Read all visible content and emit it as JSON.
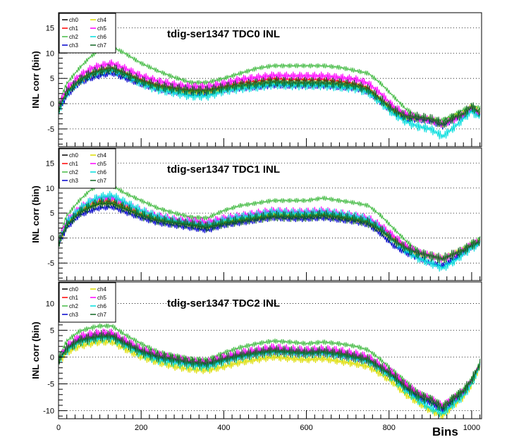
{
  "chart_data": [
    {
      "type": "line",
      "title": "tdig-ser1347 TDC0 INL",
      "ylabel": "INL corr (bin)",
      "xlabel": "",
      "xlim": [
        0,
        1024
      ],
      "ylim": [
        -8.5,
        18
      ],
      "yticks": [
        -5,
        0,
        5,
        10,
        15
      ],
      "grid": "horizontal-dotted",
      "legend": "top-left",
      "x": [
        0,
        20,
        50,
        80,
        100,
        130,
        160,
        200,
        240,
        280,
        320,
        360,
        400,
        440,
        480,
        520,
        560,
        600,
        640,
        680,
        720,
        750,
        780,
        810,
        840,
        870,
        900,
        930,
        960,
        980,
        1000,
        1024
      ],
      "series": [
        {
          "name": "ch0",
          "color": "#000000",
          "values": [
            -1,
            2,
            4.2,
            5.5,
            6,
            6.5,
            5.5,
            4,
            3,
            2.6,
            2.2,
            2.2,
            2.8,
            3.2,
            3.5,
            4,
            3.8,
            3.8,
            3.8,
            3.5,
            3.2,
            2.5,
            0.5,
            -1.5,
            -2.5,
            -2.5,
            -3,
            -4,
            -2.5,
            -2,
            -0.5,
            -2
          ]
        },
        {
          "name": "ch1",
          "color": "#ff0000",
          "values": [
            -1,
            2.5,
            4.8,
            6.2,
            6.8,
            7.2,
            6.2,
            4.8,
            3.8,
            3.2,
            2.8,
            2.8,
            3.5,
            4.2,
            4.5,
            5,
            4.8,
            4.8,
            4.8,
            4.5,
            4,
            3.2,
            1,
            -1,
            -2.5,
            -3,
            -3.2,
            -4,
            -2.8,
            -2,
            -0.8,
            -2.2
          ]
        },
        {
          "name": "ch2",
          "color": "#44bb44",
          "values": [
            0,
            4,
            7,
            9.5,
            10.5,
            11.2,
            10,
            8,
            6.5,
            5.2,
            4.2,
            4.2,
            5,
            6,
            7,
            7.5,
            7.5,
            7.5,
            7.5,
            7.2,
            6.5,
            6,
            4,
            1.5,
            -1,
            -2.5,
            -3,
            -3.2,
            -2,
            -1.2,
            -0.3,
            -1
          ]
        },
        {
          "name": "ch3",
          "color": "#0000cc",
          "values": [
            -1.5,
            1.5,
            4,
            5,
            5.5,
            6,
            5,
            3.8,
            2.8,
            2.2,
            2,
            2,
            2.6,
            3,
            3.2,
            3.6,
            3.5,
            3.5,
            3.5,
            3.2,
            3,
            2.2,
            0.2,
            -1.8,
            -3,
            -3.2,
            -3.5,
            -4.5,
            -3,
            -2.3,
            -1,
            -2.5
          ]
        },
        {
          "name": "ch4",
          "color": "#dddd00",
          "values": [
            -1,
            2.2,
            4.5,
            5.8,
            6.4,
            6.8,
            5.8,
            4.3,
            3.3,
            2.8,
            2.4,
            2.4,
            3,
            3.5,
            3.8,
            4.2,
            4,
            4,
            4,
            3.8,
            3.4,
            2.7,
            0.6,
            -1.3,
            -2.6,
            -2.8,
            -3.1,
            -4.1,
            -2.6,
            -2,
            -0.6,
            -2
          ]
        },
        {
          "name": "ch5",
          "color": "#ff00ff",
          "values": [
            -0.5,
            3,
            5.5,
            7,
            7.5,
            8,
            7,
            5.5,
            4.5,
            3.8,
            3.4,
            3.4,
            4,
            4.8,
            5.2,
            5.6,
            5.5,
            5.5,
            5.5,
            5.2,
            4.8,
            4,
            2,
            -0.5,
            -2,
            -2.8,
            -3.2,
            -4,
            -3,
            -2.2,
            -0.8,
            -2.5
          ]
        },
        {
          "name": "ch6",
          "color": "#00dddd",
          "values": [
            -1.5,
            2,
            4.5,
            5.8,
            6.3,
            6.7,
            5.7,
            4,
            2.8,
            2.2,
            1.5,
            1.5,
            2.5,
            3,
            3.3,
            3.8,
            3.6,
            3.6,
            3.6,
            3.3,
            3,
            2.2,
            0.2,
            -2,
            -3.5,
            -4.5,
            -5,
            -6.5,
            -4.5,
            -3,
            -1.5,
            -3
          ]
        },
        {
          "name": "ch7",
          "color": "#116622",
          "values": [
            -1,
            2.3,
            4.6,
            6,
            6.5,
            7,
            6,
            4.5,
            3.5,
            3,
            2.6,
            2.6,
            3.2,
            3.7,
            4,
            4.4,
            4.2,
            4.2,
            4.2,
            4,
            3.6,
            2.8,
            0.8,
            -1.2,
            -2.5,
            -2.7,
            -3,
            -4,
            -2.6,
            -2,
            -0.6,
            -2.1
          ]
        }
      ]
    },
    {
      "type": "line",
      "title": "tdig-ser1347 TDC1 INL",
      "ylabel": "INL corr (bin)",
      "xlabel": "",
      "xlim": [
        0,
        1024
      ],
      "ylim": [
        -8.5,
        18
      ],
      "yticks": [
        -5,
        0,
        5,
        10,
        15
      ],
      "grid": "horizontal-dotted",
      "legend": "top-left",
      "x": [
        0,
        20,
        50,
        80,
        100,
        130,
        160,
        200,
        240,
        280,
        320,
        360,
        400,
        440,
        480,
        520,
        560,
        600,
        640,
        680,
        720,
        750,
        780,
        810,
        840,
        870,
        900,
        930,
        960,
        980,
        1000,
        1024
      ],
      "series": [
        {
          "name": "ch0",
          "color": "#000000",
          "values": [
            -1,
            2.5,
            5,
            6.2,
            6.8,
            6.8,
            5.8,
            4.5,
            3.5,
            3,
            2.5,
            2,
            2.8,
            3.3,
            3.8,
            4.3,
            4.2,
            4.2,
            4.5,
            4,
            3.5,
            3,
            1.5,
            -0.5,
            -2,
            -3,
            -3.5,
            -4,
            -3,
            -2.5,
            -1.5,
            -0.5
          ]
        },
        {
          "name": "ch1",
          "color": "#ff0000",
          "values": [
            -1,
            3,
            5.5,
            7,
            7.5,
            7.5,
            6.5,
            5,
            4,
            3.5,
            3.2,
            2.8,
            3.5,
            4,
            4.5,
            5,
            4.8,
            4.8,
            5,
            4.6,
            4,
            3.5,
            2,
            0,
            -1.8,
            -3,
            -3.5,
            -4.2,
            -3,
            -2.3,
            -1.2,
            -0.5
          ]
        },
        {
          "name": "ch2",
          "color": "#44bb44",
          "values": [
            0,
            4.5,
            7.5,
            9.8,
            10.5,
            10.5,
            9,
            7.5,
            6,
            5,
            4.2,
            4,
            5.5,
            6.5,
            7,
            7.5,
            7.5,
            7.5,
            8,
            7.5,
            7,
            6.5,
            4.5,
            2,
            -0.5,
            -2.5,
            -3.5,
            -4,
            -3,
            -2,
            -0.8,
            0
          ]
        },
        {
          "name": "ch3",
          "color": "#0000cc",
          "values": [
            -1.5,
            2,
            4.5,
            5.5,
            6,
            6.2,
            5.2,
            4,
            3,
            2.5,
            2,
            1.5,
            2.5,
            3,
            3.5,
            4,
            3.8,
            3.8,
            4,
            3.6,
            3.2,
            2.6,
            0.8,
            -1.5,
            -3,
            -4,
            -5,
            -5.5,
            -4,
            -3,
            -1.8,
            -0.8
          ]
        },
        {
          "name": "ch4",
          "color": "#dddd00",
          "values": [
            -1,
            2.8,
            5.3,
            6.6,
            7.1,
            7.1,
            6.1,
            4.8,
            3.8,
            3.3,
            2.8,
            2.4,
            3.2,
            3.7,
            4.1,
            4.6,
            4.5,
            4.5,
            4.7,
            4.3,
            3.8,
            3.2,
            1.7,
            -0.3,
            -1.9,
            -3,
            -3.5,
            -4.1,
            -3,
            -2.4,
            -1.3,
            -0.5
          ]
        },
        {
          "name": "ch5",
          "color": "#ff00ff",
          "values": [
            -0.5,
            3.5,
            6,
            7.5,
            8,
            8,
            7,
            5.5,
            4.5,
            3.8,
            3.5,
            3.2,
            4,
            4.5,
            5,
            5.5,
            5.3,
            5.3,
            5.5,
            5,
            4.5,
            4,
            2.5,
            0.5,
            -1.5,
            -2.8,
            -3.5,
            -4.2,
            -3.2,
            -2.5,
            -1.3,
            -0.5
          ]
        },
        {
          "name": "ch6",
          "color": "#00dddd",
          "values": [
            -1,
            3.2,
            5.8,
            7.5,
            8.2,
            8.5,
            7.2,
            5.5,
            4.3,
            3.5,
            3,
            2.6,
            3.6,
            4.2,
            4.6,
            5.2,
            5,
            5,
            5.2,
            4.8,
            4.3,
            3.7,
            2,
            -0.5,
            -2.5,
            -4,
            -5,
            -6,
            -4.5,
            -3.2,
            -2,
            -1
          ]
        },
        {
          "name": "ch7",
          "color": "#116622",
          "values": [
            -1,
            2.6,
            5.1,
            6.4,
            7,
            7,
            6,
            4.6,
            3.6,
            3.1,
            2.7,
            2.2,
            3,
            3.5,
            4,
            4.4,
            4.3,
            4.3,
            4.6,
            4.2,
            3.7,
            3.1,
            1.6,
            -0.4,
            -2,
            -3,
            -3.6,
            -4.2,
            -3.1,
            -2.5,
            -1.4,
            -0.6
          ]
        }
      ]
    },
    {
      "type": "line",
      "title": "tdig-ser1347 TDC2 INL",
      "ylabel": "INL corr (bin)",
      "xlabel": "Bins",
      "xlim": [
        0,
        1024
      ],
      "xticks": [
        0,
        200,
        400,
        600,
        800,
        1000
      ],
      "ylim": [
        -11.5,
        14
      ],
      "yticks": [
        -10,
        -5,
        0,
        5,
        10
      ],
      "grid": "horizontal-dotted",
      "legend": "top-left",
      "x": [
        0,
        20,
        50,
        80,
        100,
        130,
        160,
        200,
        240,
        280,
        320,
        360,
        400,
        440,
        480,
        520,
        560,
        600,
        640,
        680,
        720,
        750,
        780,
        810,
        840,
        870,
        900,
        930,
        960,
        980,
        1000,
        1024
      ],
      "series": [
        {
          "name": "ch0",
          "color": "#000000",
          "values": [
            -0.5,
            1.5,
            3,
            3.5,
            3.8,
            3.8,
            2.5,
            1,
            0,
            -0.5,
            -1,
            -1.2,
            -0.5,
            0.3,
            0.8,
            1.2,
            1,
            0.8,
            1,
            0.5,
            0,
            -0.5,
            -2,
            -3.5,
            -5.5,
            -7,
            -7.5,
            -9,
            -7,
            -6,
            -4,
            -0.5
          ]
        },
        {
          "name": "ch1",
          "color": "#ff0000",
          "values": [
            -0.5,
            1.8,
            3.3,
            3.8,
            4,
            4.2,
            2.8,
            1.3,
            0.3,
            -0.3,
            -0.8,
            -1,
            -0.2,
            0.5,
            1,
            1.5,
            1.2,
            1,
            1.2,
            0.8,
            0.2,
            -0.3,
            -1.8,
            -3.2,
            -5.2,
            -6.8,
            -7.5,
            -9,
            -7.2,
            -6.2,
            -4.2,
            -0.8
          ]
        },
        {
          "name": "ch2",
          "color": "#44bb44",
          "values": [
            0,
            3,
            4.8,
            5.5,
            5.8,
            5.8,
            4.2,
            2.5,
            1,
            0.3,
            -0.3,
            -0.5,
            0.8,
            1.8,
            2.5,
            3,
            2.8,
            2.5,
            2.8,
            2.5,
            2,
            1.3,
            -0.5,
            -2.5,
            -4.5,
            -6.5,
            -7.5,
            -9,
            -7,
            -6,
            -4,
            -0.5
          ]
        },
        {
          "name": "ch3",
          "color": "#0000cc",
          "values": [
            -0.5,
            1.5,
            3.2,
            3.5,
            3.8,
            3.8,
            2.5,
            1,
            0,
            -0.5,
            -1.2,
            -1.5,
            -0.6,
            0.1,
            0.6,
            1,
            0.8,
            0.6,
            0.8,
            0.3,
            -0.2,
            -0.8,
            -2.3,
            -3.8,
            -6,
            -7.5,
            -8.5,
            -10,
            -8,
            -6.8,
            -4.5,
            -1
          ]
        },
        {
          "name": "ch4",
          "color": "#dddd00",
          "values": [
            -1,
            0.8,
            2,
            2.5,
            2.8,
            2.8,
            1.5,
            0,
            -1,
            -1.8,
            -2.3,
            -2.5,
            -1.8,
            -1,
            -0.5,
            0,
            -0.3,
            -0.5,
            -0.3,
            -0.8,
            -1.3,
            -1.8,
            -3.2,
            -4.8,
            -7,
            -8.5,
            -10,
            -11,
            -8.8,
            -7.5,
            -5.2,
            -1.2
          ]
        },
        {
          "name": "ch5",
          "color": "#ff00ff",
          "values": [
            -0.5,
            2,
            3.8,
            4.3,
            4.5,
            4.5,
            3.2,
            1.5,
            0.5,
            -0.2,
            -0.8,
            -1,
            0,
            0.8,
            1.3,
            1.8,
            1.5,
            1.3,
            1.5,
            1.2,
            0.6,
            0,
            -1.5,
            -3,
            -5,
            -6.8,
            -7.8,
            -9.2,
            -7.5,
            -6.5,
            -4.5,
            -1
          ]
        },
        {
          "name": "ch6",
          "color": "#00dddd",
          "values": [
            -0.5,
            1.2,
            2.8,
            3.2,
            3.5,
            3.5,
            2.2,
            0.6,
            -0.5,
            -1,
            -1.5,
            -1.8,
            -0.8,
            0,
            0.5,
            1,
            0.8,
            0.6,
            0.8,
            0.3,
            -0.2,
            -0.8,
            -2.3,
            -4,
            -6.2,
            -8,
            -9.5,
            -10.5,
            -8.5,
            -7.2,
            -5,
            -1
          ]
        },
        {
          "name": "ch7",
          "color": "#116622",
          "values": [
            -0.5,
            1.6,
            3.1,
            3.6,
            3.9,
            3.9,
            2.6,
            1.1,
            0.1,
            -0.4,
            -1,
            -1.2,
            -0.4,
            0.3,
            0.8,
            1.2,
            1,
            0.8,
            1,
            0.6,
            0,
            -0.5,
            -2,
            -3.5,
            -5.6,
            -7.2,
            -8,
            -9.5,
            -7.5,
            -6.4,
            -4.3,
            -0.8
          ]
        }
      ]
    }
  ]
}
